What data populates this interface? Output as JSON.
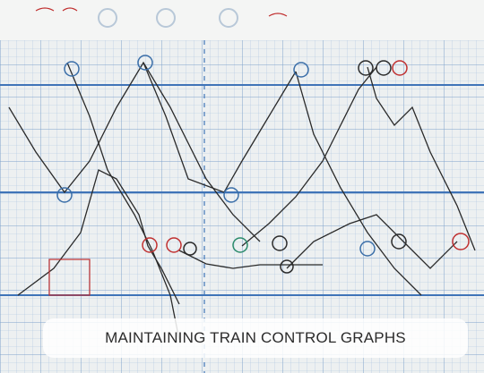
{
  "caption": {
    "text": "MAINTAINING TRAIN CONTROL GRAPHS"
  }
}
